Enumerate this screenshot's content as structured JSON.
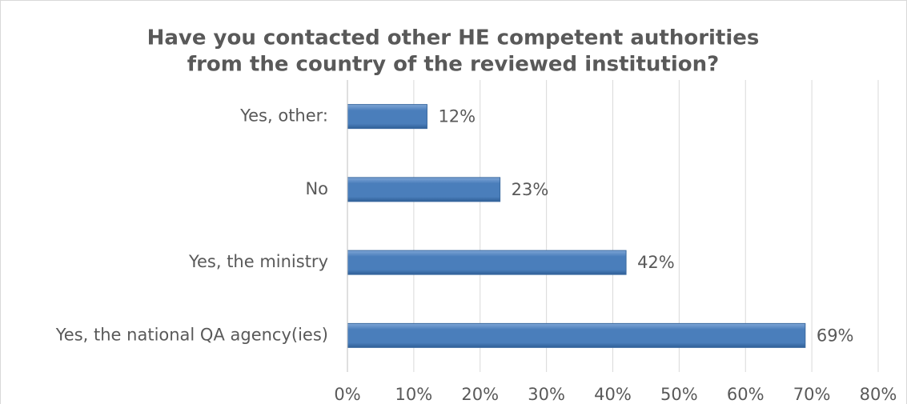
{
  "chart_data": {
    "type": "hbar",
    "title": [
      "Have you contacted other HE competent authorities",
      "from the country of the reviewed institution?"
    ],
    "categories": [
      "Yes, other:",
      "No",
      "Yes, the ministry",
      "Yes, the national QA agency(ies)"
    ],
    "values": [
      12,
      23,
      42,
      69
    ],
    "value_labels": [
      "12%",
      "23%",
      "42%",
      "69%"
    ],
    "color": "#4a7ebb",
    "xlim": [
      0,
      80
    ],
    "xticks": [
      {
        "value": 0,
        "label": "0%"
      },
      {
        "value": 10,
        "label": "10%"
      },
      {
        "value": 20,
        "label": "20%"
      },
      {
        "value": 30,
        "label": "30%"
      },
      {
        "value": 40,
        "label": "40%"
      },
      {
        "value": 50,
        "label": "50%"
      },
      {
        "value": 60,
        "label": "60%"
      },
      {
        "value": 70,
        "label": "70%"
      },
      {
        "value": 80,
        "label": "80%"
      }
    ],
    "grid": true
  }
}
